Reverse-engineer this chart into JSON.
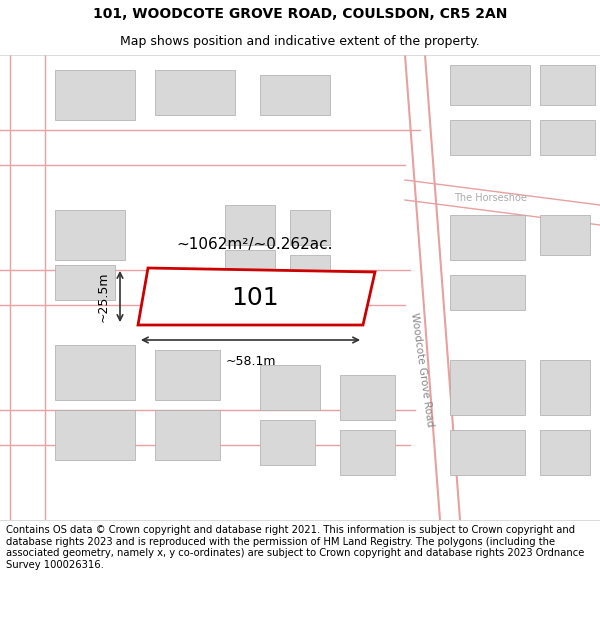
{
  "title_line1": "101, WOODCOTE GROVE ROAD, COULSDON, CR5 2AN",
  "title_line2": "Map shows position and indicative extent of the property.",
  "footer_text": "Contains OS data © Crown copyright and database right 2021. This information is subject to Crown copyright and database rights 2023 and is reproduced with the permission of HM Land Registry. The polygons (including the associated geometry, namely x, y co-ordinates) are subject to Crown copyright and database rights 2023 Ordnance Survey 100026316.",
  "area_label": "~1062m²/~0.262ac.",
  "width_label": "~58.1m",
  "height_label": "~25.5m",
  "property_number": "101",
  "street_label": "Woodcote Grove Road",
  "road_label2": "The Horseshoe",
  "bg_color": "#ffffff",
  "map_bg": "#f5f0f0",
  "building_fill": "#d8d8d8",
  "building_outline": "#aaaaaa",
  "road_line_color": "#e8a0a0",
  "highlight_box_color": "#cc0000",
  "dim_line_color": "#333333",
  "title_fontsize": 10,
  "subtitle_fontsize": 9,
  "footer_fontsize": 7.2
}
